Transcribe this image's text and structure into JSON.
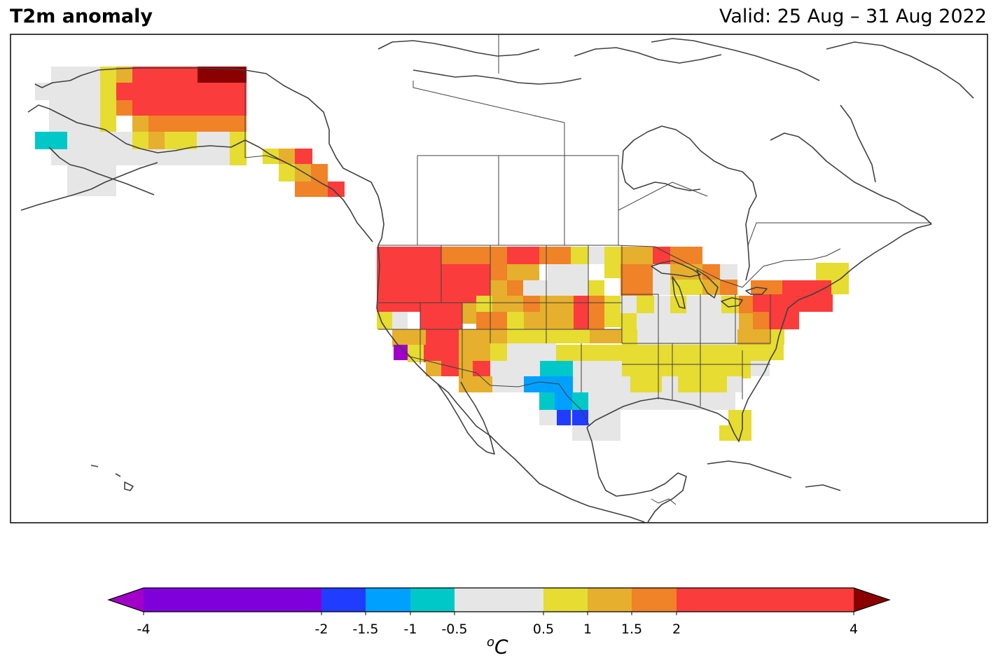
{
  "title": "T2m anomaly",
  "valid": "Valid: 25 Aug – 31 Aug 2022",
  "colorbar": {
    "unit_super": "o",
    "unit_main": "C",
    "ticks": [
      {
        "label": "-4",
        "value": -4
      },
      {
        "label": "-2",
        "value": -2
      },
      {
        "label": "-1.5",
        "value": -1.5
      },
      {
        "label": "-1",
        "value": -1
      },
      {
        "label": "-0.5",
        "value": -0.5
      },
      {
        "label": "0.5",
        "value": 0.5
      },
      {
        "label": "1",
        "value": 1
      },
      {
        "label": "1.5",
        "value": 1.5
      },
      {
        "label": "2",
        "value": 2
      },
      {
        "label": "4",
        "value": 4
      }
    ],
    "bins": [
      {
        "from": -4,
        "to": -2,
        "color": "#8000dc"
      },
      {
        "from": -2,
        "to": -1.5,
        "color": "#1f3cff"
      },
      {
        "from": -1.5,
        "to": -1,
        "color": "#00a0ff"
      },
      {
        "from": -1,
        "to": -0.5,
        "color": "#00c8c8"
      },
      {
        "from": -0.5,
        "to": 0.5,
        "color": "#e6e6e6"
      },
      {
        "from": 0.5,
        "to": 1,
        "color": "#e6dc32"
      },
      {
        "from": 1,
        "to": 1.5,
        "color": "#e6af2d"
      },
      {
        "from": 1.5,
        "to": 2,
        "color": "#f08228"
      },
      {
        "from": 2,
        "to": 4,
        "color": "#fa3c3c"
      }
    ],
    "under_color": "#a000c8",
    "over_color": "#8b0000"
  },
  "colors": {
    "coast": "#404040",
    "border": "#404040"
  }
}
